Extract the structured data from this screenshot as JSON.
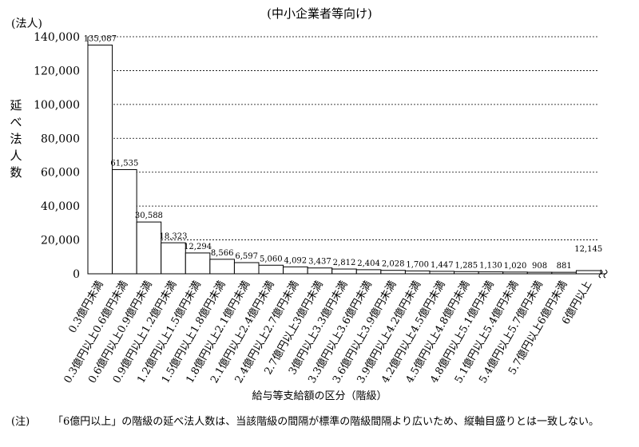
{
  "chart_data": {
    "type": "bar",
    "title": "(中小企業者等向け)",
    "unit_label": "(法人)",
    "ylabel": "延べ法人数",
    "xlabel": "給与等支給額の区分（階級）",
    "ylim": [
      0,
      140000
    ],
    "y_ticks": [
      "0",
      "20,000",
      "40,000",
      "60,000",
      "80,000",
      "100,000",
      "120,000",
      "140,000"
    ],
    "grid": true,
    "categories": [
      "0.3億円未満",
      "0.3億円以上0.6億円未満",
      "0.6億円以上0.9億円未満",
      "0.9億円以上1.2億円未満",
      "1.2億円以上1.5億円未満",
      "1.5億円以上1.8億円未満",
      "1.8億円以上2.1億円未満",
      "2.1億円以上2.4億円未満",
      "2.4億円以上2.7億円未満",
      "2.7億円以上3億円未満",
      "3億円以上3.3億円未満",
      "3.3億円以上3.6億円未満",
      "3.6億円以上3.9億円未満",
      "3.9億円以上4.2億円未満",
      "4.2億円以上4.5億円未満",
      "4.5億円以上4.8億円未満",
      "4.8億円以上5.1億円未満",
      "5.1億円以上5.4億円未満",
      "5.4億円以上5.7億円未満",
      "5.7億円以上6億円未満",
      "6億円以上"
    ],
    "values": [
      135087,
      61535,
      30588,
      18323,
      12294,
      8566,
      6597,
      5060,
      4092,
      3437,
      2812,
      2404,
      2028,
      1700,
      1447,
      1285,
      1130,
      1020,
      908,
      881,
      12145
    ],
    "data_labels": [
      "135,087",
      "61,535",
      "30,588",
      "18,323",
      "12,294",
      "8,566",
      "6,597",
      "5,060",
      "4,092",
      "3,437",
      "2,812",
      "2,404",
      "2,028",
      "1,700",
      "1,447",
      "1,285",
      "1,130",
      "1,020",
      "908",
      "881",
      "12,145"
    ]
  },
  "note": {
    "head": "(注)",
    "text": "「6億円以上」の階級の延べ法人数は、当該階級の間隔が標準の階級間隔より広いため、縦軸目盛りとは一致しない。"
  }
}
